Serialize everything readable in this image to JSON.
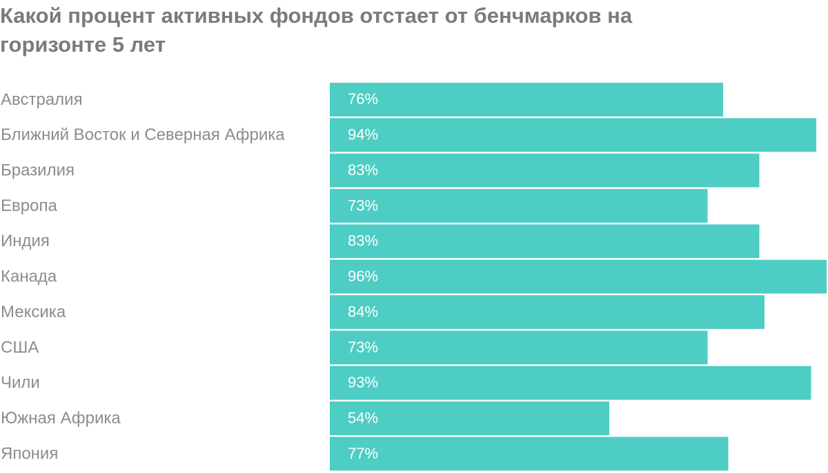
{
  "chart_data": {
    "type": "bar",
    "orientation": "horizontal",
    "title": "Какой процент активных фондов отстает от бенчмарков на горизонте 5 лет",
    "categories": [
      "Австралия",
      "Ближний Восток и Северная Африка",
      "Бразилия",
      "Европа",
      "Индия",
      "Канада",
      "Мексика",
      "США",
      "Чили",
      "Южная Африка",
      "Япония"
    ],
    "values": [
      76,
      94,
      83,
      73,
      83,
      96,
      84,
      73,
      93,
      54,
      77
    ],
    "value_labels": [
      "76%",
      "94%",
      "83%",
      "73%",
      "83%",
      "96%",
      "84%",
      "73%",
      "93%",
      "54%",
      "77%"
    ],
    "color": "#4ecdc4"
  }
}
